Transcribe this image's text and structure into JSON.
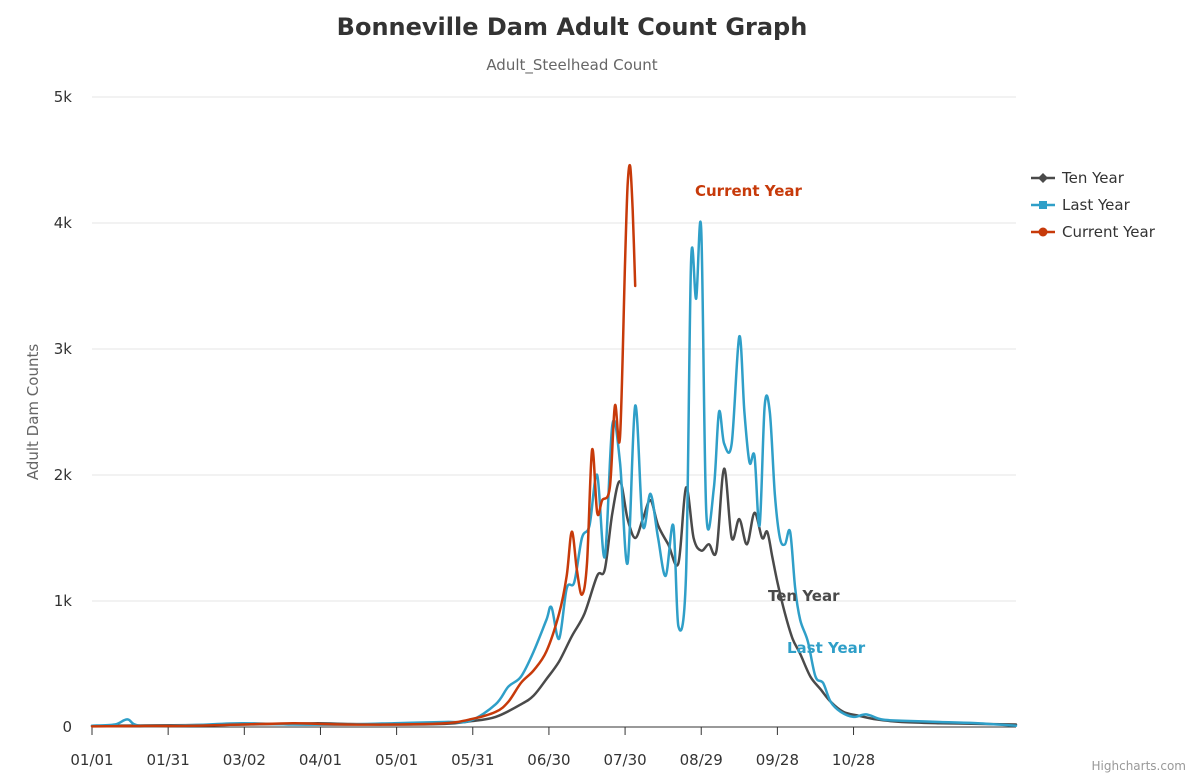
{
  "chart_data": {
    "type": "line",
    "title": "Bonneville Dam Adult Count Graph",
    "subtitle": "Adult_Steelhead Count",
    "ylabel": "Adult Dam Counts",
    "xlabel": "",
    "ylim": [
      0,
      5000
    ],
    "yticks": [
      0,
      1000,
      2000,
      3000,
      4000,
      5000
    ],
    "ytick_labels": [
      "0",
      "1k",
      "2k",
      "3k",
      "4k",
      "5k"
    ],
    "xlim": [
      1,
      365
    ],
    "xticks": [
      1,
      31,
      61,
      91,
      121,
      151,
      181,
      211,
      241,
      271,
      301
    ],
    "xtick_labels": [
      "01/01",
      "01/31",
      "03/02",
      "04/01",
      "05/01",
      "05/31",
      "06/30",
      "07/30",
      "08/29",
      "09/28",
      "10/28"
    ],
    "grid": true,
    "legend_position": "right",
    "credits": "Highcharts.com",
    "series": [
      {
        "name": "Ten Year",
        "color": "#4a4a4a",
        "marker": "diamond",
        "points": [
          [
            1,
            10
          ],
          [
            20,
            12
          ],
          [
            40,
            15
          ],
          [
            60,
            20
          ],
          [
            80,
            25
          ],
          [
            90,
            30
          ],
          [
            100,
            25
          ],
          [
            120,
            20
          ],
          [
            140,
            25
          ],
          [
            150,
            45
          ],
          [
            160,
            80
          ],
          [
            170,
            180
          ],
          [
            175,
            250
          ],
          [
            180,
            380
          ],
          [
            185,
            520
          ],
          [
            190,
            720
          ],
          [
            195,
            900
          ],
          [
            200,
            1200
          ],
          [
            203,
            1250
          ],
          [
            206,
            1700
          ],
          [
            209,
            1950
          ],
          [
            212,
            1650
          ],
          [
            215,
            1500
          ],
          [
            218,
            1650
          ],
          [
            221,
            1800
          ],
          [
            224,
            1600
          ],
          [
            228,
            1450
          ],
          [
            232,
            1300
          ],
          [
            235,
            1900
          ],
          [
            238,
            1500
          ],
          [
            241,
            1400
          ],
          [
            244,
            1450
          ],
          [
            247,
            1400
          ],
          [
            250,
            2050
          ],
          [
            253,
            1500
          ],
          [
            256,
            1650
          ],
          [
            259,
            1450
          ],
          [
            262,
            1700
          ],
          [
            265,
            1500
          ],
          [
            267,
            1550
          ],
          [
            269,
            1350
          ],
          [
            271,
            1150
          ],
          [
            274,
            900
          ],
          [
            277,
            700
          ],
          [
            280,
            580
          ],
          [
            284,
            400
          ],
          [
            288,
            300
          ],
          [
            292,
            200
          ],
          [
            297,
            120
          ],
          [
            303,
            90
          ],
          [
            310,
            60
          ],
          [
            320,
            40
          ],
          [
            335,
            30
          ],
          [
            350,
            25
          ],
          [
            365,
            20
          ]
        ]
      },
      {
        "name": "Last Year",
        "color": "#2f9fc8",
        "marker": "square",
        "points": [
          [
            1,
            10
          ],
          [
            10,
            20
          ],
          [
            15,
            60
          ],
          [
            20,
            10
          ],
          [
            40,
            15
          ],
          [
            60,
            30
          ],
          [
            80,
            20
          ],
          [
            100,
            20
          ],
          [
            120,
            30
          ],
          [
            140,
            40
          ],
          [
            150,
            50
          ],
          [
            160,
            180
          ],
          [
            165,
            320
          ],
          [
            170,
            400
          ],
          [
            175,
            600
          ],
          [
            180,
            850
          ],
          [
            182,
            950
          ],
          [
            185,
            700
          ],
          [
            188,
            1100
          ],
          [
            191,
            1150
          ],
          [
            194,
            1500
          ],
          [
            197,
            1600
          ],
          [
            200,
            2000
          ],
          [
            203,
            1350
          ],
          [
            206,
            2400
          ],
          [
            209,
            2100
          ],
          [
            212,
            1300
          ],
          [
            215,
            2550
          ],
          [
            218,
            1600
          ],
          [
            221,
            1850
          ],
          [
            224,
            1500
          ],
          [
            227,
            1200
          ],
          [
            230,
            1600
          ],
          [
            232,
            800
          ],
          [
            235,
            1200
          ],
          [
            237,
            3700
          ],
          [
            239,
            3400
          ],
          [
            241,
            3950
          ],
          [
            243,
            1700
          ],
          [
            246,
            1900
          ],
          [
            248,
            2500
          ],
          [
            250,
            2250
          ],
          [
            253,
            2250
          ],
          [
            256,
            3100
          ],
          [
            258,
            2500
          ],
          [
            260,
            2100
          ],
          [
            262,
            2150
          ],
          [
            264,
            1600
          ],
          [
            266,
            2550
          ],
          [
            268,
            2500
          ],
          [
            270,
            1850
          ],
          [
            272,
            1500
          ],
          [
            274,
            1450
          ],
          [
            276,
            1550
          ],
          [
            278,
            1100
          ],
          [
            280,
            850
          ],
          [
            283,
            680
          ],
          [
            286,
            400
          ],
          [
            289,
            350
          ],
          [
            292,
            200
          ],
          [
            296,
            120
          ],
          [
            301,
            80
          ],
          [
            306,
            100
          ],
          [
            312,
            60
          ],
          [
            320,
            50
          ],
          [
            335,
            40
          ],
          [
            350,
            30
          ],
          [
            365,
            10
          ]
        ]
      },
      {
        "name": "Current Year",
        "color": "#c73a0a",
        "marker": "circle",
        "points": [
          [
            1,
            5
          ],
          [
            20,
            8
          ],
          [
            40,
            10
          ],
          [
            60,
            20
          ],
          [
            80,
            30
          ],
          [
            90,
            25
          ],
          [
            100,
            20
          ],
          [
            120,
            20
          ],
          [
            140,
            30
          ],
          [
            150,
            60
          ],
          [
            160,
            120
          ],
          [
            165,
            200
          ],
          [
            170,
            350
          ],
          [
            175,
            450
          ],
          [
            180,
            600
          ],
          [
            185,
            900
          ],
          [
            188,
            1200
          ],
          [
            190,
            1550
          ],
          [
            192,
            1250
          ],
          [
            194,
            1050
          ],
          [
            196,
            1300
          ],
          [
            198,
            2200
          ],
          [
            200,
            1700
          ],
          [
            202,
            1800
          ],
          [
            205,
            1900
          ],
          [
            207,
            2550
          ],
          [
            209,
            2300
          ],
          [
            211,
            3700
          ],
          [
            212,
            4300
          ],
          [
            213,
            4450
          ],
          [
            214,
            4100
          ],
          [
            215,
            3500
          ]
        ]
      }
    ],
    "annotations": [
      {
        "text": "Current Year",
        "series": "Current Year"
      },
      {
        "text": "Ten Year",
        "series": "Ten Year"
      },
      {
        "text": "Last Year",
        "series": "Last Year"
      }
    ]
  }
}
